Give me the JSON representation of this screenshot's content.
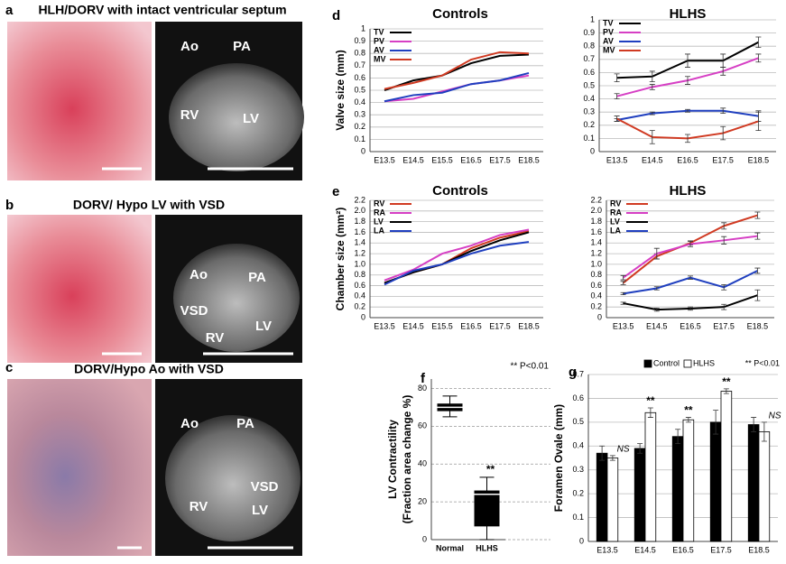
{
  "panel_letters": [
    "a",
    "b",
    "c",
    "d",
    "e",
    "f",
    "g"
  ],
  "panels": [
    {
      "title": "HLH/DORV with intact ventricular septum",
      "labels": [
        "Ao",
        "PA",
        "RV",
        "LV"
      ]
    },
    {
      "title": "DORV/ Hypo LV with VSD",
      "labels": [
        "Ao",
        "PA",
        "VSD",
        "RV",
        "LV"
      ]
    },
    {
      "title": "DORV/Hypo Ao with VSD",
      "labels": [
        "Ao",
        "PA",
        "VSD",
        "RV",
        "LV"
      ]
    }
  ],
  "chart_data": [
    {
      "type": "line",
      "title": "Controls",
      "ylabel": "Valve size (mm)",
      "categories": [
        "E13.5",
        "E14.5",
        "E15.5",
        "E16.5",
        "E17.5",
        "E18.5"
      ],
      "ylim": [
        0,
        1
      ],
      "yticks": [
        0,
        0.1,
        0.2,
        0.3,
        0.4,
        0.5,
        0.6,
        0.7,
        0.8,
        0.9,
        1
      ],
      "grid": true,
      "series": [
        {
          "name": "TV",
          "color": "#000000",
          "values": [
            0.5,
            0.58,
            0.62,
            0.72,
            0.78,
            0.79
          ]
        },
        {
          "name": "PV",
          "color": "#d63fc4",
          "values": [
            0.41,
            0.43,
            0.49,
            0.55,
            0.58,
            0.62
          ]
        },
        {
          "name": "AV",
          "color": "#1f3fbf",
          "values": [
            0.41,
            0.46,
            0.48,
            0.55,
            0.58,
            0.64
          ]
        },
        {
          "name": "MV",
          "color": "#d03a22",
          "values": [
            0.51,
            0.56,
            0.62,
            0.75,
            0.81,
            0.8
          ]
        }
      ]
    },
    {
      "type": "line",
      "title": "HLHS",
      "categories": [
        "E13.5",
        "E14.5",
        "E16.5",
        "E17.5",
        "E18.5"
      ],
      "ylim": [
        0,
        1
      ],
      "yticks": [
        0,
        0.1,
        0.2,
        0.3,
        0.4,
        0.5,
        0.6,
        0.7,
        0.8,
        0.9,
        1
      ],
      "grid": true,
      "series": [
        {
          "name": "TV",
          "color": "#000000",
          "values": [
            0.56,
            0.57,
            0.69,
            0.69,
            0.83
          ],
          "errors": [
            0.03,
            0.04,
            0.05,
            0.05,
            0.04
          ]
        },
        {
          "name": "PV",
          "color": "#d63fc4",
          "values": [
            0.42,
            0.49,
            0.54,
            0.61,
            0.71
          ],
          "errors": [
            0.02,
            0.02,
            0.03,
            0.03,
            0.03
          ]
        },
        {
          "name": "AV",
          "color": "#1f3fbf",
          "values": [
            0.24,
            0.29,
            0.31,
            0.31,
            0.27
          ],
          "errors": [
            0.01,
            0.01,
            0.01,
            0.02,
            0.04
          ]
        },
        {
          "name": "MV",
          "color": "#d03a22",
          "values": [
            0.25,
            0.11,
            0.1,
            0.14,
            0.23
          ],
          "errors": [
            0.02,
            0.05,
            0.03,
            0.05,
            0.07
          ]
        }
      ]
    },
    {
      "type": "line",
      "title": "Controls",
      "ylabel": "Chamber size (mm²)",
      "categories": [
        "E13.5",
        "E14.5",
        "E15.5",
        "E16.5",
        "E17.5",
        "E18.5"
      ],
      "ylim": [
        0,
        2.2
      ],
      "yticks": [
        0,
        0.2,
        0.4,
        0.6,
        0.8,
        {
          "value": 1,
          "label": "1.0"
        },
        1.2,
        1.4,
        1.6,
        1.8,
        {
          "value": 2,
          "label": "2.0"
        },
        2.2
      ],
      "grid": true,
      "series": [
        {
          "name": "RV",
          "color": "#d03a22",
          "values": [
            0.65,
            0.85,
            1.0,
            1.3,
            1.5,
            1.62
          ]
        },
        {
          "name": "RA",
          "color": "#d63fc4",
          "values": [
            0.7,
            0.9,
            1.2,
            1.35,
            1.55,
            1.65
          ]
        },
        {
          "name": "LV",
          "color": "#000000",
          "values": [
            0.65,
            0.85,
            1.0,
            1.25,
            1.45,
            1.6
          ]
        },
        {
          "name": "LA",
          "color": "#1f3fbf",
          "values": [
            0.62,
            0.88,
            1.0,
            1.2,
            1.35,
            1.42
          ]
        }
      ]
    },
    {
      "type": "line",
      "title": "HLHS",
      "categories": [
        "E13.5",
        "E14.5",
        "E16.5",
        "E17.5",
        "E18.5"
      ],
      "ylim": [
        0,
        2.2
      ],
      "yticks": [
        0,
        0.2,
        0.4,
        0.6,
        0.8,
        {
          "value": 1,
          "label": "1.0"
        },
        1.2,
        1.4,
        1.6,
        1.8,
        {
          "value": 2,
          "label": "2.0"
        },
        2.2
      ],
      "grid": true,
      "series": [
        {
          "name": "RV",
          "color": "#d03a22",
          "values": [
            0.65,
            1.15,
            1.4,
            1.72,
            1.92
          ],
          "errors": [
            0.03,
            0.05,
            0.04,
            0.06,
            0.06
          ]
        },
        {
          "name": "RA",
          "color": "#d63fc4",
          "values": [
            0.75,
            1.2,
            1.38,
            1.45,
            1.53
          ],
          "errors": [
            0.04,
            0.1,
            0.05,
            0.07,
            0.06
          ]
        },
        {
          "name": "LV",
          "color": "#000000",
          "values": [
            0.27,
            0.15,
            0.17,
            0.2,
            0.42
          ],
          "errors": [
            0.02,
            0.03,
            0.03,
            0.05,
            0.1
          ]
        },
        {
          "name": "LA",
          "color": "#1f3fbf",
          "values": [
            0.45,
            0.55,
            0.75,
            0.57,
            0.88
          ],
          "errors": [
            0.02,
            0.03,
            0.03,
            0.05,
            0.05
          ]
        }
      ]
    },
    {
      "type": "box",
      "ylabel": [
        "LV Contractility",
        "(Fraction area change %)"
      ],
      "categories": [
        "Normal",
        "HLHS"
      ],
      "ylim": [
        0,
        85
      ],
      "yticks": [
        0,
        20,
        40,
        60,
        80
      ],
      "grid": true,
      "boxes": [
        {
          "min": 65,
          "q1": 68,
          "median": 70,
          "q3": 72,
          "max": 76
        },
        {
          "min": 0,
          "q1": 7,
          "median": 24,
          "q3": 26,
          "max": 33
        }
      ],
      "note": "** P<0.01",
      "significance": [
        null,
        "**"
      ]
    },
    {
      "type": "bar",
      "ylabel": "Foramen Ovale (mm)",
      "categories": [
        "E13.5",
        "E14.5",
        "E16.5",
        "E17.5",
        "E18.5"
      ],
      "ylim": [
        0,
        0.7
      ],
      "yticks": [
        0,
        0.1,
        0.2,
        0.3,
        0.4,
        0.5,
        0.6,
        0.7
      ],
      "grid": true,
      "series": [
        {
          "name": "Control",
          "color": "#000000",
          "values": [
            0.37,
            0.39,
            0.44,
            0.5,
            0.49
          ],
          "errors": [
            0.03,
            0.02,
            0.03,
            0.05,
            0.03
          ]
        },
        {
          "name": "HLHS",
          "color": "#ffffff",
          "values": [
            0.35,
            0.54,
            0.51,
            0.63,
            0.46
          ],
          "errors": [
            0.01,
            0.02,
            0.01,
            0.01,
            0.04
          ]
        }
      ],
      "note": "** P<0.01",
      "significance": [
        "NS",
        "**",
        "**",
        "**",
        "NS"
      ]
    }
  ]
}
